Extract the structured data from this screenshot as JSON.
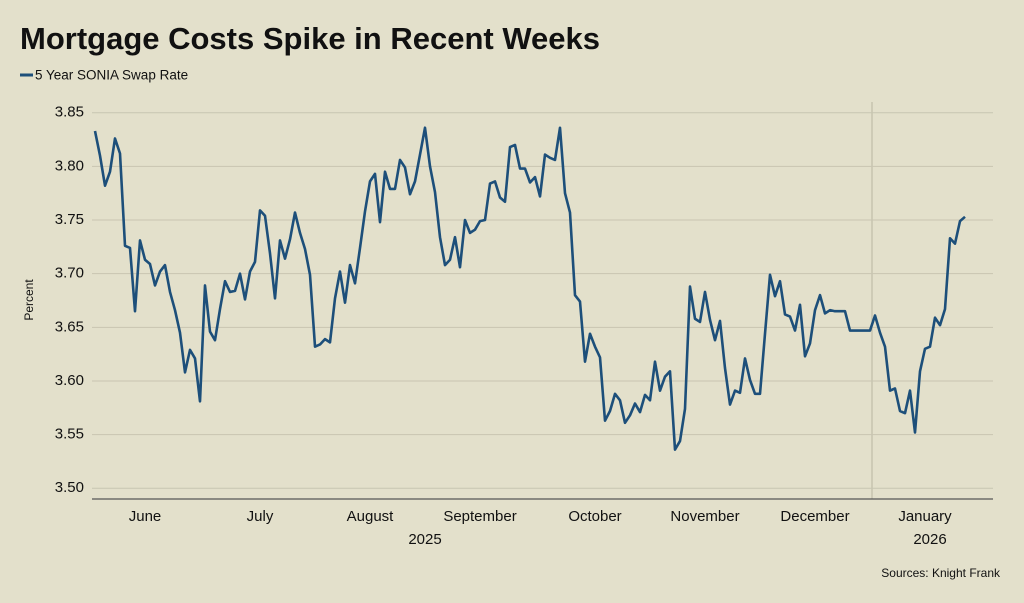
{
  "chart_data": {
    "type": "line",
    "title": "Mortgage Costs Spike in Recent Weeks",
    "y_label": "Percent",
    "source": "Sources: Knight Frank",
    "categories": [
      null,
      null,
      null,
      null,
      null,
      null,
      null,
      null,
      null,
      null,
      "June",
      null,
      null,
      null,
      null,
      null,
      null,
      null,
      null,
      null,
      null,
      null,
      null,
      null,
      null,
      null,
      null,
      null,
      null,
      null,
      null,
      null,
      null,
      "July",
      null,
      null,
      null,
      null,
      null,
      null,
      null,
      null,
      null,
      null,
      null,
      null,
      null,
      null,
      null,
      null,
      null,
      null,
      null,
      null,
      null,
      "August",
      null,
      null,
      null,
      null,
      null,
      null,
      null,
      null,
      null,
      null,
      null,
      null,
      null,
      null,
      null,
      null,
      null,
      null,
      null,
      null,
      null,
      "September",
      null,
      null,
      null,
      null,
      null,
      null,
      null,
      null,
      null,
      null,
      null,
      null,
      null,
      null,
      null,
      null,
      null,
      null,
      null,
      null,
      null,
      null,
      "October",
      null,
      null,
      null,
      null,
      null,
      null,
      null,
      null,
      null,
      null,
      null,
      null,
      null,
      null,
      null,
      null,
      null,
      null,
      null,
      null,
      null,
      "November",
      null,
      null,
      null,
      null,
      null,
      null,
      null,
      null,
      null,
      null,
      null,
      null,
      null,
      null,
      null,
      null,
      null,
      null,
      null,
      null,
      null,
      "December",
      null,
      null,
      null,
      null,
      null,
      null,
      null,
      null,
      null,
      null,
      null,
      null,
      null,
      null,
      null,
      null,
      null,
      null,
      null,
      null,
      null,
      "January",
      null,
      null,
      null,
      null,
      null,
      null,
      null,
      null
    ],
    "years": [
      null,
      null,
      null,
      null,
      null,
      null,
      null,
      null,
      null,
      null,
      null,
      null,
      null,
      null,
      null,
      null,
      null,
      null,
      null,
      null,
      null,
      null,
      null,
      null,
      null,
      null,
      null,
      null,
      null,
      null,
      null,
      null,
      null,
      null,
      null,
      null,
      null,
      null,
      null,
      null,
      null,
      null,
      null,
      null,
      null,
      null,
      null,
      null,
      null,
      null,
      null,
      null,
      null,
      null,
      null,
      null,
      null,
      null,
      null,
      null,
      null,
      null,
      null,
      null,
      null,
      null,
      "2025",
      null,
      null,
      null,
      null,
      null,
      null,
      null,
      null,
      null,
      null,
      null,
      null,
      null,
      null,
      null,
      null,
      null,
      null,
      null,
      null,
      null,
      null,
      null,
      null,
      null,
      null,
      null,
      null,
      null,
      null,
      null,
      null,
      null,
      null,
      null,
      null,
      null,
      null,
      null,
      null,
      null,
      null,
      null,
      null,
      null,
      null,
      null,
      null,
      null,
      null,
      null,
      null,
      null,
      null,
      null,
      null,
      null,
      null,
      null,
      null,
      null,
      null,
      null,
      null,
      null,
      null,
      null,
      null,
      null,
      null,
      null,
      null,
      null,
      null,
      null,
      null,
      null,
      null,
      null,
      null,
      null,
      null,
      null,
      null,
      null,
      null,
      null,
      null,
      null,
      null,
      null,
      null,
      null,
      null,
      null,
      null,
      null,
      null,
      null,
      null,
      "2026",
      null,
      null,
      null,
      null,
      null,
      null,
      null
    ],
    "series": [
      {
        "name": "5 Year SONIA Swap Rate",
        "color": "#1d4f7a",
        "values": [
          3.833,
          3.81,
          3.782,
          3.795,
          3.826,
          3.812,
          3.726,
          3.724,
          3.665,
          3.731,
          3.713,
          3.709,
          3.689,
          3.702,
          3.708,
          3.683,
          3.666,
          3.645,
          3.608,
          3.629,
          3.621,
          3.581,
          3.689,
          3.646,
          3.638,
          3.667,
          3.693,
          3.683,
          3.684,
          3.7,
          3.676,
          3.702,
          3.711,
          3.759,
          3.754,
          3.719,
          3.677,
          3.731,
          3.714,
          3.732,
          3.757,
          3.738,
          3.723,
          3.699,
          3.632,
          3.634,
          3.639,
          3.636,
          3.677,
          3.702,
          3.673,
          3.708,
          3.691,
          3.724,
          3.758,
          3.786,
          3.793,
          3.748,
          3.795,
          3.779,
          3.779,
          3.806,
          3.799,
          3.774,
          3.786,
          3.811,
          3.836,
          3.8,
          3.776,
          3.734,
          3.708,
          3.713,
          3.734,
          3.706,
          3.75,
          3.738,
          3.741,
          3.749,
          3.75,
          3.784,
          3.786,
          3.771,
          3.767,
          3.818,
          3.82,
          3.798,
          3.798,
          3.785,
          3.79,
          3.772,
          3.811,
          3.808,
          3.806,
          3.836,
          3.775,
          3.757,
          3.68,
          3.674,
          3.618,
          3.644,
          3.632,
          3.622,
          3.563,
          3.572,
          3.588,
          3.582,
          3.561,
          3.568,
          3.579,
          3.571,
          3.587,
          3.582,
          3.618,
          3.591,
          3.604,
          3.609,
          3.536,
          3.544,
          3.574,
          3.688,
          3.658,
          3.655,
          3.683,
          3.657,
          3.638,
          3.656,
          3.612,
          3.578,
          3.591,
          3.589,
          3.621,
          3.601,
          3.588,
          3.588,
          3.644,
          3.699,
          3.679,
          3.693,
          3.662,
          3.66,
          3.647,
          3.671,
          3.623,
          3.635,
          3.666,
          3.68,
          3.663,
          3.666,
          3.665,
          3.665,
          3.665,
          3.647,
          3.647,
          3.647,
          3.647,
          3.647,
          3.661,
          3.645,
          3.632,
          3.591,
          3.593,
          3.572,
          3.57,
          3.591,
          3.552,
          3.609,
          3.63,
          3.632,
          3.659,
          3.652,
          3.667,
          3.733,
          3.728,
          3.749,
          3.753
        ]
      }
    ],
    "ylim": [
      3.49,
      3.86
    ],
    "yticks": [
      {
        "value": 3.5,
        "label": "3.50"
      },
      3.55,
      {
        "value": 3.6,
        "label": "3.60"
      },
      3.65,
      {
        "value": 3.7,
        "label": "3.70"
      },
      3.75,
      {
        "value": 3.8,
        "label": "3.80"
      },
      3.85
    ],
    "grid": true
  }
}
